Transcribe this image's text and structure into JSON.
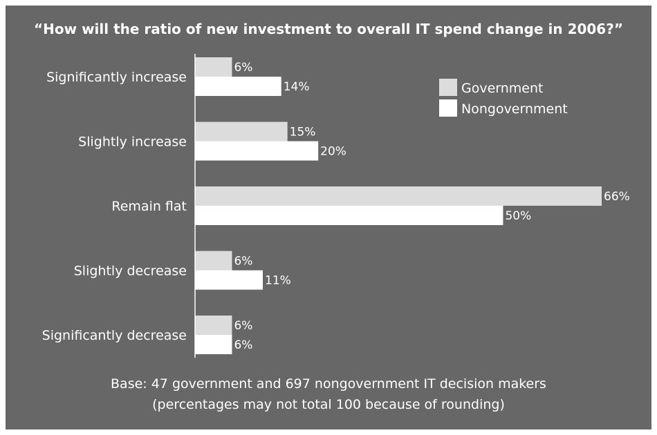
{
  "chart_data": {
    "type": "bar",
    "orientation": "horizontal",
    "title": "“How will the ratio of new investment to overall IT spend change in 2006?”",
    "categories": [
      "Significantly increase",
      "Slightly increase",
      "Remain flat",
      "Slightly decrease",
      "Significantly decrease"
    ],
    "series": [
      {
        "name": "Government",
        "values": [
          6,
          15,
          66,
          6,
          6
        ],
        "labels": [
          "6%",
          "15%",
          "66%",
          "6%",
          "6%"
        ],
        "color": "#dcdcdc"
      },
      {
        "name": "Nongovernment",
        "values": [
          14,
          20,
          50,
          11,
          6
        ],
        "labels": [
          "14%",
          "20%",
          "50%",
          "11%",
          "6%"
        ],
        "color": "#ffffff"
      }
    ],
    "xlim": [
      0,
      70
    ],
    "unit": "%",
    "legend_position": "top-right",
    "grid": false
  },
  "footnote": {
    "line1": "Base: 47 government and 697 nongovernment IT decision makers",
    "line2": "(percentages may not total 100 because of rounding)"
  },
  "colors": {
    "background": "#676767",
    "government": "#dcdcdc",
    "nongovernment": "#ffffff",
    "text": "#ffffff"
  }
}
